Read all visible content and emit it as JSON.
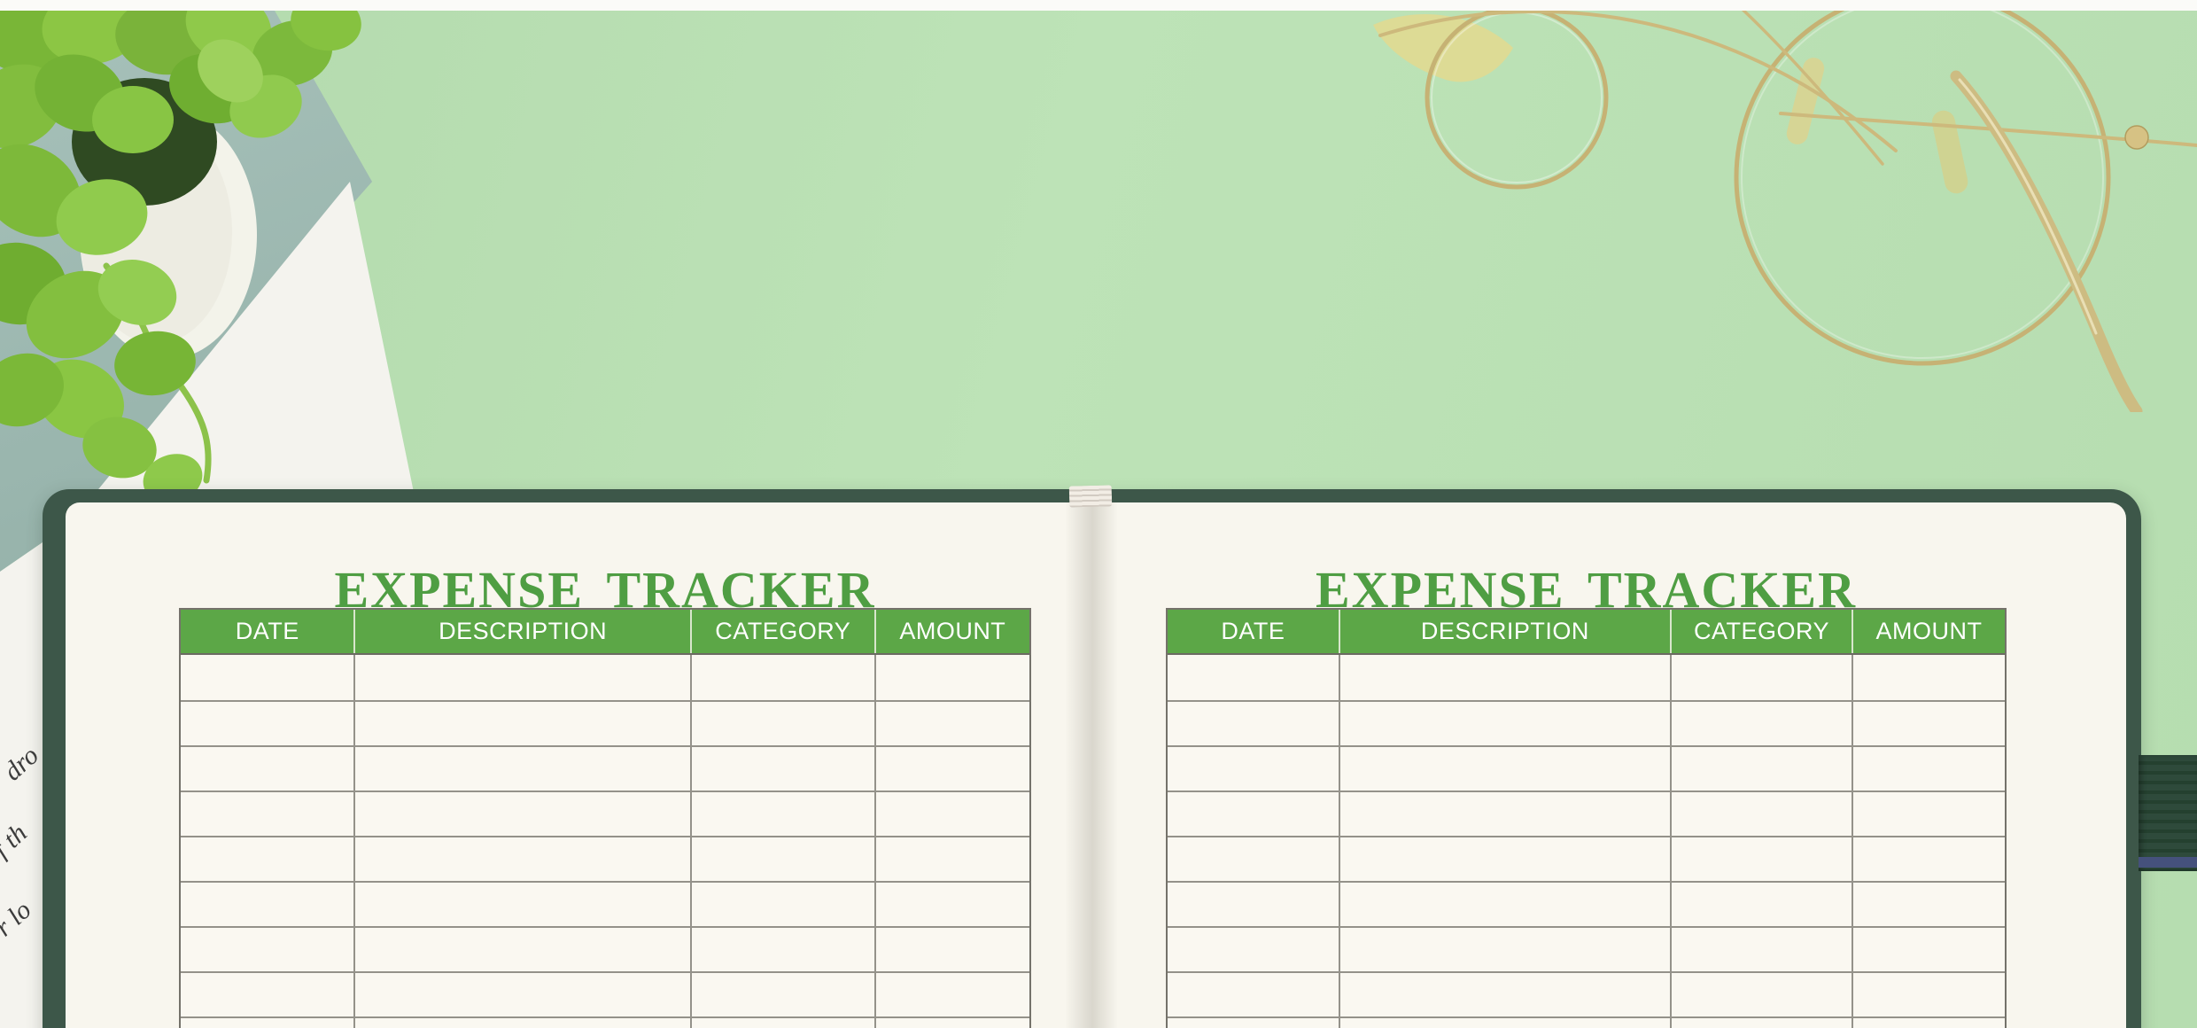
{
  "pages": [
    {
      "side": "left",
      "title": "EXPENSE TRACKER",
      "columns": [
        "DATE",
        "DESCRIPTION",
        "CATEGORY",
        "AMOUNT"
      ],
      "rows": [
        [
          "",
          "",
          "",
          ""
        ],
        [
          "",
          "",
          "",
          ""
        ],
        [
          "",
          "",
          "",
          ""
        ],
        [
          "",
          "",
          "",
          ""
        ],
        [
          "",
          "",
          "",
          ""
        ],
        [
          "",
          "",
          "",
          ""
        ],
        [
          "",
          "",
          "",
          ""
        ],
        [
          "",
          "",
          "",
          ""
        ],
        [
          "",
          "",
          "",
          ""
        ]
      ]
    },
    {
      "side": "right",
      "title": "EXPENSE TRACKER",
      "columns": [
        "DATE",
        "DESCRIPTION",
        "CATEGORY",
        "AMOUNT"
      ],
      "rows": [
        [
          "",
          "",
          "",
          ""
        ],
        [
          "",
          "",
          "",
          ""
        ],
        [
          "",
          "",
          "",
          ""
        ],
        [
          "",
          "",
          "",
          ""
        ],
        [
          "",
          "",
          "",
          ""
        ],
        [
          "",
          "",
          "",
          ""
        ],
        [
          "",
          "",
          "",
          ""
        ],
        [
          "",
          "",
          "",
          ""
        ],
        [
          "",
          "",
          "",
          ""
        ]
      ]
    }
  ],
  "paper_text_fragments": [
    "dro",
    "f th",
    "r lo"
  ],
  "colors": {
    "title_green": "#4f9e43",
    "header_green": "#5ca747",
    "header_text": "#ffffff",
    "notebook_cover_green": "#3d5749",
    "elastic_band_green": "#2c4637",
    "band_stripe_blue": "#45517c",
    "desk_mint": "#b7ddb1",
    "paper_white": "#f4f3ee",
    "teal_folder": "#9dbab2",
    "page_cream": "#f8f6ee",
    "grid_line_gray": "#94928a",
    "glasses_gold": "#c7b375",
    "plant_leaf_green": "#82bd3e",
    "pot_white": "#f3f3ea"
  },
  "decor": {
    "plant": "potted-plant",
    "glasses": "gold-eyeglasses",
    "tab": "spine-tab",
    "band": "elastic-band"
  }
}
